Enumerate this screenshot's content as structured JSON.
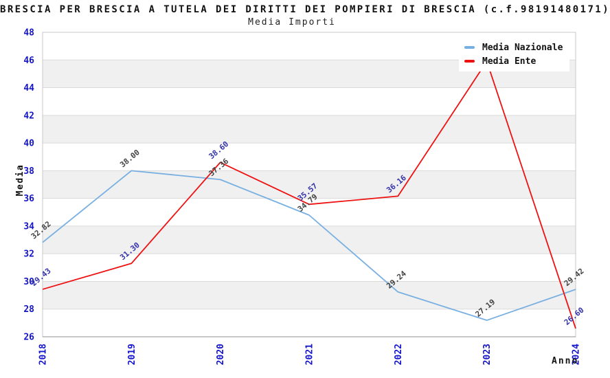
{
  "chart": {
    "title": "BRESCIA PER BRESCIA A TUTELA DEI DIRITTI DEI POMPIERI DI BRESCIA (c.f.98191480171)",
    "subtitle": "Media Importi",
    "ylabel": "Media",
    "xlabel": "Anno"
  },
  "chart_data": {
    "type": "line",
    "title": "BRESCIA PER BRESCIA A TUTELA DEI DIRITTI DEI POMPIERI DI BRESCIA (c.f.98191480171)",
    "subtitle": "Media Importi",
    "xlabel": "Anno",
    "ylabel": "Media",
    "categories": [
      "2018",
      "2019",
      "2020",
      "2021",
      "2022",
      "2023",
      "2024"
    ],
    "series": [
      {
        "name": "Media Nazionale",
        "color": "#78afe1",
        "label_color": "#444444",
        "values": [
          32.82,
          38.0,
          37.36,
          34.79,
          29.24,
          27.19,
          29.42
        ],
        "labels": [
          "32.82",
          "38.00",
          "37.36",
          "34.79",
          "29.24",
          "27.19",
          "29.42"
        ]
      },
      {
        "name": "Media Ente",
        "color": "#ee1111",
        "label_color": "#3434aa",
        "values": [
          29.43,
          31.3,
          38.6,
          35.57,
          36.16,
          45.9,
          26.6
        ],
        "labels": [
          "29.43",
          "31.30",
          "38.60",
          "35.57",
          "36.16",
          null,
          "26.60"
        ]
      }
    ],
    "ylim": [
      26,
      48
    ],
    "y_tick_step": 2,
    "y_ticks": [
      26,
      28,
      30,
      32,
      34,
      36,
      38,
      40,
      42,
      44,
      46,
      48
    ],
    "grid": "horizontal-gridlines-with-alternating-bands",
    "legend_position": "top-right",
    "colors": {
      "tick_label_blue": "#1414cc",
      "band_gray": "#f0f0f0",
      "grid_line": "#dadada",
      "plot_border": "#c8c8c8",
      "axis_bottom": "#a8a8a8"
    }
  }
}
